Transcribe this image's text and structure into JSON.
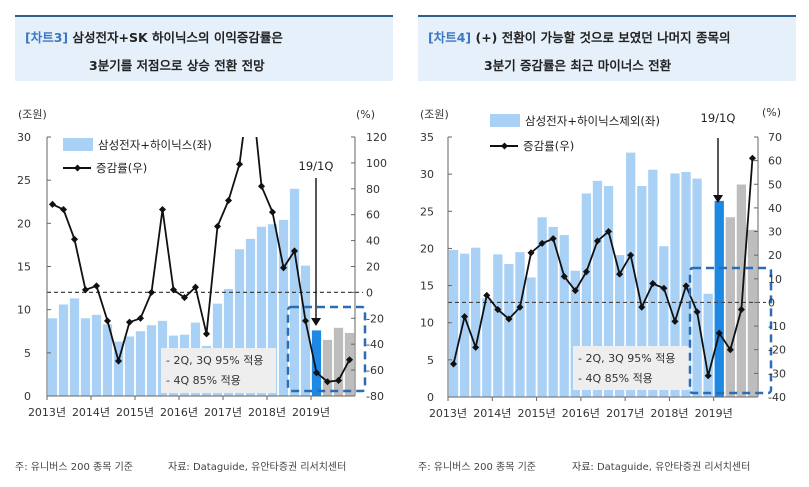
{
  "charts": [
    {
      "tag": "[차트3]",
      "title_line1": "삼성전자+SK 하이닉스의 이익증감률은",
      "title_line2": "3분기를 저점으로 상승 전환 전망",
      "note": "주: 유니버스 200 종목 기준",
      "source": "자료: Dataguide, 유안타증권 리서치센터"
    },
    {
      "tag": "[차트4]",
      "title_line1": "(+) 전환이 가능할 것으로 보였던 나머지 종목의",
      "title_line2": "3분기 증감률은 최근 마이너스 전환",
      "note": "주: 유니버스 200 종목 기준",
      "source": "자료: Dataguide, 유안타증권 리서치센터"
    }
  ],
  "colors": {
    "bar": "#a9d1f5",
    "highlight": "#1e88e5",
    "forecast": "#bdbdbd",
    "line": "#111111",
    "box": "#2a6db5",
    "header_bg": "#e6f0fb",
    "tag": "#3b78c3"
  },
  "chart_data": [
    {
      "type": "bar+line",
      "x_labels": [
        "2013년",
        "2014년",
        "2015년",
        "2016년",
        "2017년",
        "2018년",
        "2019년"
      ],
      "ylabel_left": "(조원)",
      "ylabel_right": "(%)",
      "ylim_left": [
        0,
        30
      ],
      "yticks_left": [
        0,
        5,
        10,
        15,
        20,
        25,
        30
      ],
      "ylim_right": [
        -80,
        120
      ],
      "yticks_right": [
        -80,
        -60,
        -40,
        -20,
        0,
        20,
        40,
        60,
        80,
        100,
        120
      ],
      "series": [
        {
          "name": "삼성전자+하이닉스(좌)",
          "kind": "bar",
          "axis": "left",
          "values": [
            9.0,
            10.6,
            11.3,
            9.0,
            9.4,
            8.3,
            6.3,
            6.9,
            7.5,
            8.2,
            8.7,
            7.0,
            7.1,
            8.5,
            5.8,
            10.7,
            12.4,
            17.0,
            18.2,
            19.6,
            19.9,
            20.4,
            24.0,
            15.1,
            7.6,
            6.5,
            7.9,
            7.3
          ]
        },
        {
          "name": "증감률(우)",
          "kind": "line",
          "axis": "right",
          "values": [
            68,
            64,
            41,
            2,
            5,
            -22,
            -53,
            -23,
            -20,
            0,
            64,
            2,
            -4,
            4,
            -32,
            51,
            71,
            99,
            165,
            82,
            62,
            19,
            32,
            -22,
            -62,
            -69,
            -68,
            -52
          ]
        }
      ],
      "highlight_index": 24,
      "forecast_from": 25,
      "annotation_arrow": "19/1Q",
      "annotation_box": [
        "- 2Q, 3Q 95% 적용",
        "- 4Q 85% 적용"
      ],
      "reference_line": 0,
      "legend": "top-left"
    },
    {
      "type": "bar+line",
      "x_labels": [
        "2013년",
        "2014년",
        "2015년",
        "2016년",
        "2017년",
        "2018년",
        "2019년"
      ],
      "ylabel_left": "(조원)",
      "ylabel_right": "(%)",
      "ylim_left": [
        0,
        35
      ],
      "yticks_left": [
        0,
        5,
        10,
        15,
        20,
        25,
        30,
        35
      ],
      "ylim_right": [
        -40,
        70
      ],
      "yticks_right": [
        -40,
        -30,
        -20,
        -10,
        0,
        10,
        20,
        30,
        40,
        50,
        60,
        70
      ],
      "series": [
        {
          "name": "삼성전자+하이닉스제외(좌)",
          "kind": "bar",
          "axis": "left",
          "values": [
            19.8,
            19.3,
            20.1,
            13.3,
            19.2,
            17.9,
            19.5,
            16.1,
            24.2,
            22.9,
            21.8,
            17.0,
            27.4,
            29.1,
            28.4,
            19.1,
            32.9,
            28.4,
            30.6,
            20.3,
            30.1,
            30.3,
            29.4,
            13.9,
            26.4,
            24.2,
            28.6,
            22.5
          ]
        },
        {
          "name": "증감률(우)",
          "kind": "line",
          "axis": "right",
          "values": [
            -26,
            -6,
            -19,
            3,
            -3,
            -7,
            -2,
            21,
            25,
            27,
            11,
            5,
            13,
            26,
            30,
            12,
            20,
            -2,
            8,
            6,
            -8,
            7,
            -4,
            -31,
            -13,
            -20,
            -3,
            61
          ]
        }
      ],
      "highlight_index": 24,
      "forecast_from": 25,
      "annotation_arrow": "19/1Q",
      "annotation_box": [
        "- 2Q, 3Q 95% 적용",
        "- 4Q 85% 적용"
      ],
      "reference_line": 0,
      "legend": "top-left"
    }
  ]
}
